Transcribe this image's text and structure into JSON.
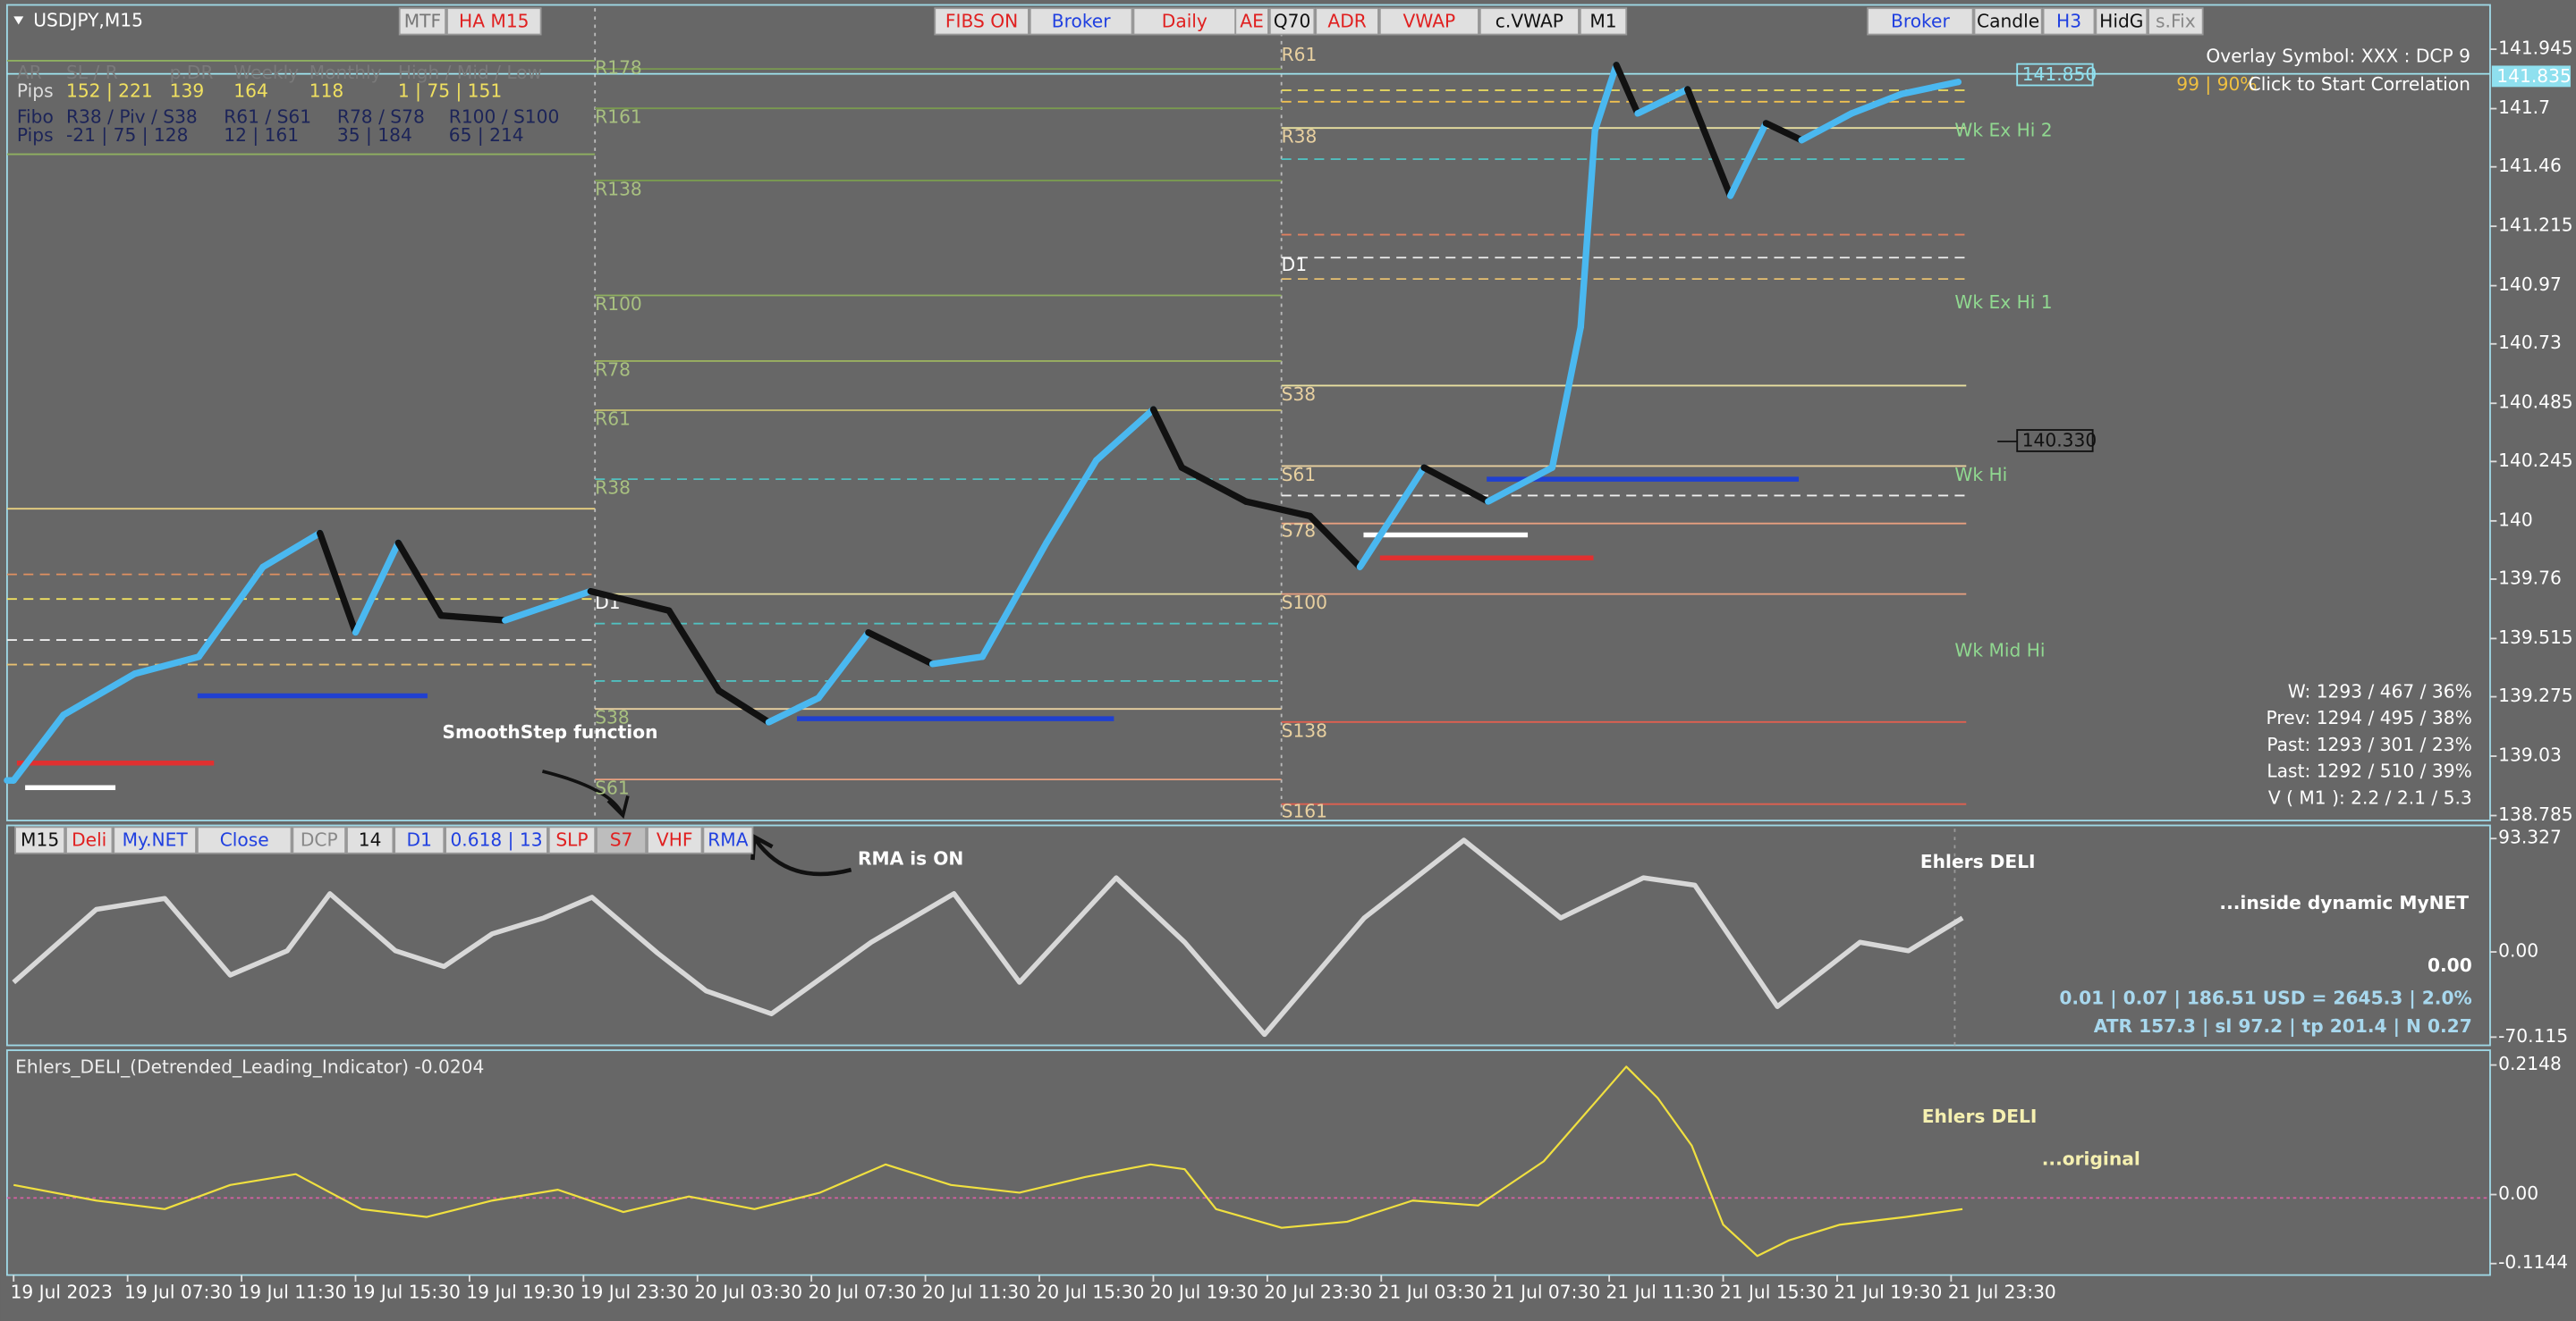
{
  "header": {
    "symbol": "USDJPY,M15",
    "buttons": [
      "MTF",
      "HA M15",
      "FIBS ON",
      "Broker",
      "Daily",
      "AE",
      "Q70",
      "ADR",
      "VWAP",
      "c.VWAP",
      "M1",
      "Broker",
      "Candle",
      "H3",
      "HidG",
      "s.Fix"
    ]
  },
  "info_table": {
    "rows": [
      [
        "AR",
        "SL / R",
        "p.DR",
        "Weekly",
        "Monthly",
        "High / Mid / Low"
      ],
      [
        "Pips",
        "152 | 221",
        "139",
        "164",
        "118",
        "1 | 75 | 151"
      ],
      [
        "Fibo",
        "R38 / Piv / S38",
        "R61 / S61",
        "R78 / S78",
        "R100 / S100"
      ],
      [
        "Pips",
        "-21 | 75 | 128",
        "12 | 161",
        "35 | 184",
        "65 | 214"
      ]
    ]
  },
  "overlay": {
    "symbol": "Overlay Symbol: XXX : DCP 9",
    "correlation": "99 | 90%",
    "action": "Click to Start Correlation"
  },
  "price_panel": {
    "yticks": [
      141.945,
      141.7,
      141.46,
      141.215,
      140.97,
      140.73,
      140.485,
      140.245,
      140,
      139.76,
      139.515,
      139.275,
      139.03,
      138.785
    ],
    "price_labels": [
      "141.835",
      "141.850",
      "140.330"
    ],
    "levels_left": [
      "R178",
      "R161",
      "R138",
      "R100",
      "R78",
      "R61",
      "R38",
      "D1",
      "S38",
      "S61"
    ],
    "levels_right": [
      "R61",
      "R38",
      "D1",
      "S38",
      "S61",
      "S78",
      "S100",
      "S138",
      "S161"
    ],
    "weekly": [
      "Wk Ex Hi 2",
      "Wk Ex Hi 1",
      "Wk Hi",
      "Wk Mid Hi"
    ],
    "stats": [
      "W: 1293 / 467 / 36%",
      "Prev: 1294 / 495 / 38%",
      "Past: 1293 / 301 / 23%",
      "Last: 1292 / 510 / 39%",
      "V ( M1 ): 2.2 / 2.1 / 5.3"
    ],
    "series": {
      "x": [
        0,
        1.75,
        4.25,
        6.5,
        8.75,
        10.75,
        12,
        13.5,
        15,
        17.25,
        20.25,
        23,
        24.75,
        26.5,
        28.25,
        30,
        32.25,
        34,
        36.25,
        38,
        40,
        41,
        43.25,
        45.5,
        47.25,
        49.5,
        51.75,
        54,
        55,
        55.5,
        56.25,
        57,
        58.75,
        60.25,
        61.5,
        62.75,
        64.5,
        66.25,
        68.25
      ],
      "values": [
        138.93,
        139.2,
        139.37,
        139.44,
        139.81,
        139.95,
        139.54,
        139.91,
        139.61,
        139.59,
        139.71,
        139.63,
        139.3,
        139.17,
        139.27,
        139.54,
        139.41,
        139.44,
        139.91,
        140.25,
        140.46,
        140.22,
        140.08,
        140.02,
        139.81,
        140.22,
        140.08,
        140.22,
        140.8,
        141.61,
        141.88,
        141.68,
        141.78,
        141.34,
        141.64,
        141.57,
        141.68,
        141.76,
        141.81
      ]
    }
  },
  "annotations": [
    "SmoothStep function",
    "RMA is ON"
  ],
  "mynet_panel": {
    "buttons": [
      "M15",
      "Deli",
      "My.NET",
      "Close",
      "DCP",
      "14",
      "D1",
      "0.618 | 13",
      "SLP",
      "S7",
      "VHF",
      "RMA"
    ],
    "title": "Ehlers DELI",
    "subtitle": "...inside dynamic MyNET",
    "value": "0.00",
    "info": [
      "0.01  |  0.07  |  186.51 USD = 2645.3  |  2.0%",
      "ATR 157.3  |  sl 97.2  |  tp 201.4  |  N 0.27"
    ],
    "yticks": [
      93.327,
      {
        "value": 0,
        "label": "0.00"
      },
      -70.115
    ],
    "series": {
      "x": [
        0,
        2.9,
        5.3,
        7.6,
        9.6,
        11.1,
        13.4,
        15.1,
        16.8,
        18.6,
        20.3,
        22.6,
        24.3,
        26.6,
        30.1,
        33,
        35.3,
        38.7,
        41.1,
        43.9,
        47.4,
        50.9,
        54.3,
        57.2,
        59,
        61.9,
        64.8,
        66.5,
        68.4
      ],
      "values": [
        -25,
        35,
        44,
        -19,
        1,
        48,
        1,
        -12,
        15,
        28,
        45,
        -1,
        -32,
        -51,
        8,
        48,
        -25,
        61,
        8,
        -68,
        28,
        92,
        28,
        61,
        55,
        -45,
        8,
        1,
        28
      ]
    }
  },
  "deli_panel": {
    "label": "Ehlers_DELI_(Detrended_Leading_Indicator) -0.0204",
    "title": "Ehlers DELI",
    "subtitle": "...original",
    "yticks": [
      0.2148,
      {
        "value": 0,
        "label": "0.00"
      },
      -0.1144
    ],
    "series": {
      "x": [
        0,
        2.9,
        5.3,
        7.6,
        9.9,
        12.2,
        14.5,
        16.8,
        19.1,
        21.4,
        23.7,
        26,
        28.3,
        30.6,
        32.9,
        35.3,
        37.6,
        39.9,
        41.1,
        42.2,
        44.5,
        46.8,
        49.1,
        51.4,
        53.7,
        55.4,
        56.6,
        57.7,
        58.9,
        60,
        61.2,
        62.3,
        64.1,
        66.4,
        68.4
      ],
      "values": [
        0.016,
        -0.01,
        -0.024,
        0.016,
        0.034,
        -0.024,
        -0.037,
        -0.01,
        0.008,
        -0.029,
        -0.003,
        -0.024,
        0.003,
        0.05,
        0.016,
        0.003,
        0.029,
        0.05,
        0.042,
        -0.024,
        -0.055,
        -0.045,
        -0.01,
        -0.018,
        0.055,
        0.147,
        0.212,
        0.16,
        0.081,
        -0.05,
        -0.102,
        -0.076,
        -0.05,
        -0.037,
        -0.024
      ]
    }
  },
  "time_axis": [
    "19 Jul 2023",
    "19 Jul 07:30",
    "19 Jul 11:30",
    "19 Jul 15:30",
    "19 Jul 19:30",
    "19 Jul 23:30",
    "20 Jul 03:30",
    "20 Jul 07:30",
    "20 Jul 11:30",
    "20 Jul 15:30",
    "20 Jul 19:30",
    "20 Jul 23:30",
    "21 Jul 03:30",
    "21 Jul 07:30",
    "21 Jul 11:30",
    "21 Jul 15:30",
    "21 Jul 19:30",
    "21 Jul 23:30"
  ]
}
